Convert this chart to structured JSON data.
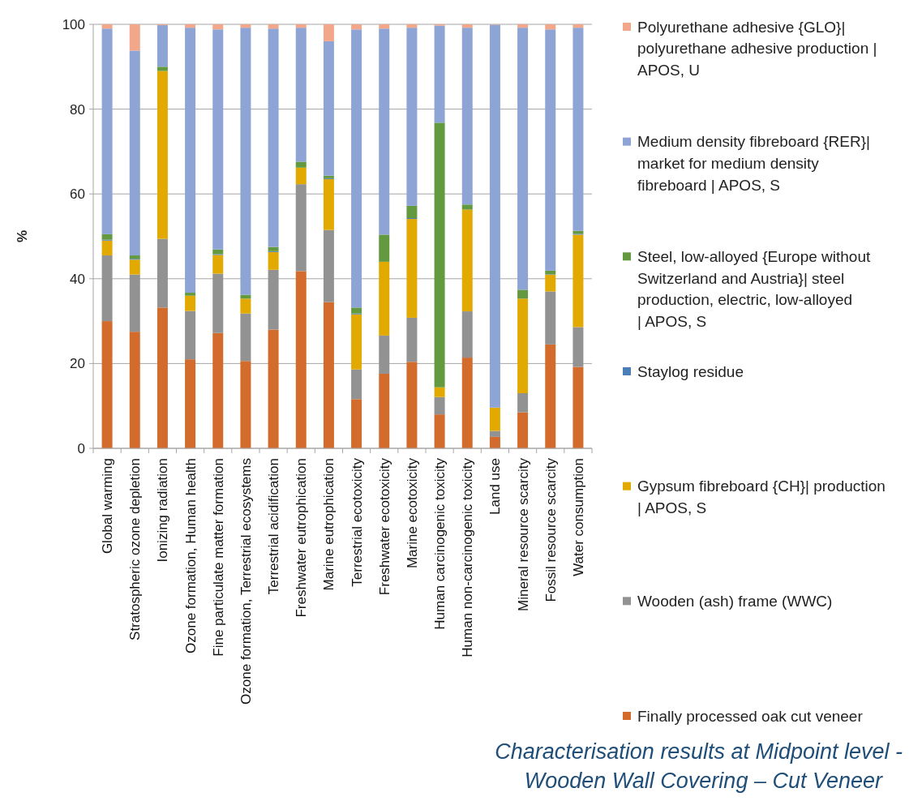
{
  "chart_data": {
    "type": "bar",
    "stacked": true,
    "title": "Characterisation results at Midpoint level - Wooden Wall Covering – Cut Veneer",
    "ylabel": "%",
    "categories": [
      "Global warming",
      "Stratospheric ozone depletion",
      "Ionizing radiation",
      "Ozone formation, Human health",
      "Fine particulate matter formation",
      "Ozone formation, Terrestrial ecosystems",
      "Terrestrial acidification",
      "Freshwater eutrophication",
      "Marine eutrophication",
      "Terrestrial ecotoxicity",
      "Freshwater ecotoxicity",
      "Marine ecotoxicity",
      "Human carcinogenic toxicity",
      "Human non-carcinogenic toxicity",
      "Land use",
      "Mineral resource scarcity",
      "Fossil resource scarcity",
      "Water consumption"
    ],
    "series": [
      {
        "name": "Finally processed oak cut veneer",
        "color": "#d26b2b",
        "values": [
          30,
          27.5,
          33.2,
          21,
          27.2,
          20.6,
          28,
          41.8,
          34.5,
          11.6,
          17.6,
          20.4,
          8,
          21.4,
          2.7,
          8.5,
          24.5,
          19.2
        ]
      },
      {
        "name": "Wooden (ash) frame (WWC)",
        "color": "#929292",
        "values": [
          15.5,
          13.5,
          16.2,
          11.4,
          14,
          11.2,
          14.1,
          20.5,
          17,
          7,
          9,
          10.4,
          4.1,
          10.9,
          1.4,
          4.5,
          12.5,
          9.4
        ]
      },
      {
        "name": "Gypsum fibreboard {CH}| production | APOS, S",
        "color": "#e2aa00",
        "values": [
          3.5,
          3.5,
          39.6,
          3.6,
          4.4,
          3.5,
          4.2,
          3.9,
          12,
          13,
          17.4,
          23.3,
          2.3,
          24,
          5.5,
          22.3,
          4,
          21.8
        ]
      },
      {
        "name": "Staylog residue",
        "color": "#4a7fb8",
        "values": [
          0.2,
          0.2,
          0,
          0,
          0.2,
          0,
          0.2,
          0,
          0.2,
          0.2,
          0,
          0.2,
          0,
          0,
          0,
          0,
          0.1,
          0.2
        ]
      },
      {
        "name": "Steel, low-alloyed {Europe without Switzerland and Austria}| steel production, electric, low-alloyed | APOS, S",
        "color": "#639a40",
        "values": [
          1.3,
          0.8,
          1,
          0.7,
          1.1,
          0.9,
          1,
          1.4,
          0.6,
          1.4,
          6.4,
          2.9,
          62.4,
          1.2,
          0,
          2.1,
          0.8,
          0.7
        ]
      },
      {
        "name": "Medium density fibreboard {RER}| market for medium density fibreboard | APOS, S",
        "color": "#8ea4d5",
        "values": [
          48.5,
          48.3,
          9.8,
          62.5,
          51.9,
          63,
          51.5,
          31.6,
          31.7,
          65.6,
          48.6,
          42,
          22.9,
          41.7,
          90.3,
          61.8,
          56.9,
          47.9
        ]
      },
      {
        "name": "Polyurethane adhesive {GLO}| polyurethane adhesive production | APOS, U",
        "color": "#f2a78a",
        "values": [
          1,
          6.2,
          0.2,
          0.8,
          1.2,
          0.8,
          1,
          0.8,
          4,
          1.2,
          1,
          0.8,
          0.3,
          0.8,
          0.1,
          0.8,
          1.2,
          0.8
        ]
      }
    ],
    "ylim": [
      0,
      100
    ],
    "yticks": [
      0,
      20,
      40,
      60,
      80,
      100
    ],
    "grid": "y",
    "legend": "right"
  }
}
